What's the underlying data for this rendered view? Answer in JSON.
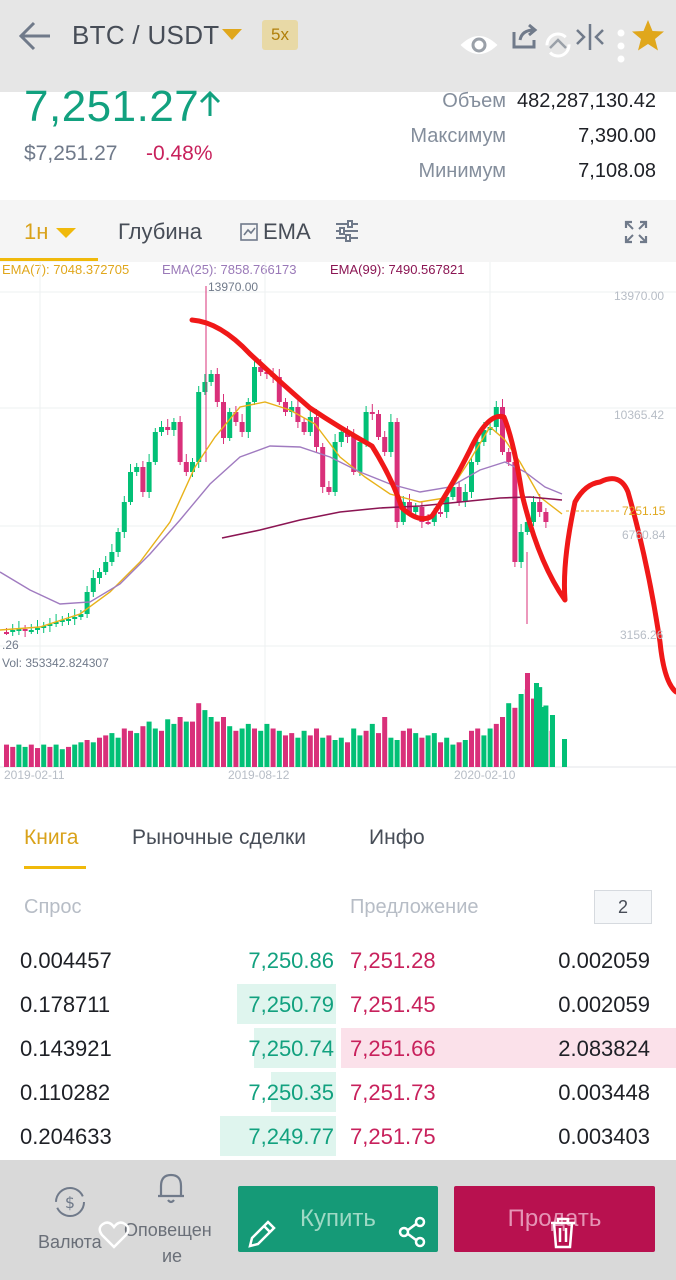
{
  "topbar": {
    "pair": "BTC / USDT",
    "leverage": "5x",
    "icons": [
      "back-arrow-icon",
      "eye-icon",
      "share-icon",
      "sync-icon",
      "compare-icon",
      "more-icon",
      "star-icon"
    ]
  },
  "ticker": {
    "price": "7,251.27",
    "price_usd": "$7,251.27",
    "change": "-0.48%",
    "stats": [
      {
        "label": "Объем",
        "value": "482,287,130.42"
      },
      {
        "label": "Максимум",
        "value": "7,390.00"
      },
      {
        "label": "Минимум",
        "value": "7,108.08"
      }
    ]
  },
  "chart_tabs": {
    "interval": "1н",
    "depth": "Глубина",
    "indicator": "EMA"
  },
  "chart_data": {
    "type": "candlestick",
    "ema_labels": [
      "EMA(7): 7048.372705",
      "EMA(25): 7858.766173",
      "EMA(99): 7490.567821"
    ],
    "y_ticks": [
      "13970.00",
      "10365.42",
      "6760.84",
      "3156.26"
    ],
    "high_marker": "13970.00",
    "low_marker_partial": ".26",
    "current_marker": "7251.15",
    "volume_label": "Vol: 353342.824307",
    "x_ticks": [
      "2019-02-11",
      "2019-08-12",
      "2020-02-10"
    ],
    "colors": {
      "up": "#02c076",
      "down": "#d9307a",
      "ema7": "#e8b21a",
      "ema25": "#a07bc0",
      "ema99": "#8b1553",
      "annotation": "#f01818"
    }
  },
  "orderbook": {
    "tabs": [
      "Книга",
      "Рыночные сделки",
      "Инфо"
    ],
    "bid_header": "Спрос",
    "ask_header": "Предложение",
    "depth": "2",
    "rows": [
      {
        "bid_qty": "0.004457",
        "bid_px": "7,250.86",
        "ask_px": "7,251.28",
        "ask_qty": "0.002059",
        "bid_depth": 0.0,
        "ask_depth": 0.0
      },
      {
        "bid_qty": "0.178711",
        "bid_px": "7,250.79",
        "ask_px": "7,251.45",
        "ask_qty": "0.002059",
        "bid_depth": 0.29,
        "ask_depth": 0.0
      },
      {
        "bid_qty": "0.143921",
        "bid_px": "7,250.74",
        "ask_px": "7,251.66",
        "ask_qty": "2.083824",
        "bid_depth": 0.24,
        "ask_depth": 1.0
      },
      {
        "bid_qty": "0.110282",
        "bid_px": "7,250.35",
        "ask_px": "7,251.73",
        "ask_qty": "0.003448",
        "bid_depth": 0.19,
        "ask_depth": 0.0
      },
      {
        "bid_qty": "0.204633",
        "bid_px": "7,249.77",
        "ask_px": "7,251.75",
        "ask_qty": "0.003403",
        "bid_depth": 0.34,
        "ask_depth": 0.0
      }
    ]
  },
  "bottombar": {
    "currency": "Валюта",
    "alerts_line1": "Оповещен",
    "alerts_line2": "ие",
    "buy": "Купить",
    "sell": "Продать"
  }
}
